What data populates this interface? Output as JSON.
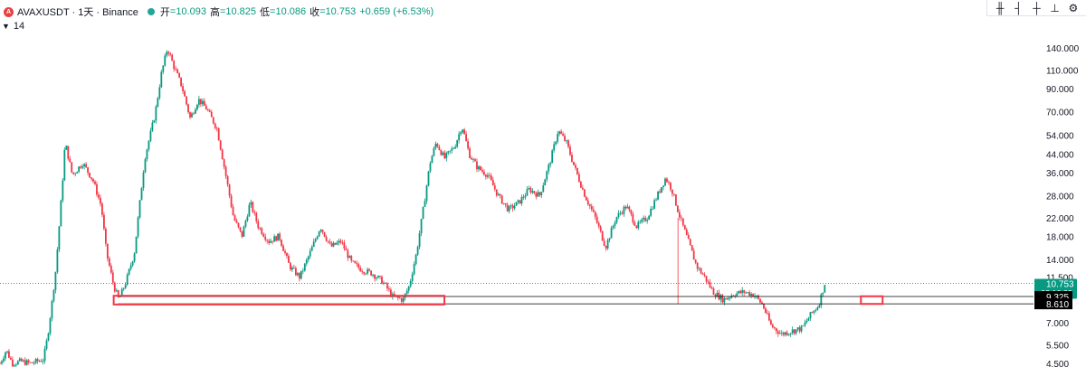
{
  "header": {
    "symbol": "AVAXUSDT · 1天 · Binance",
    "logo_letter": "A",
    "ohlc": [
      {
        "label": "开",
        "value": "=10.093"
      },
      {
        "label": "高",
        "value": "=10.825"
      },
      {
        "label": "低",
        "value": "=10.086"
      },
      {
        "label": "收",
        "value": "=10.753"
      }
    ],
    "change": "+0.659 (+6.53%)"
  },
  "indicator": {
    "value": "14"
  },
  "toolbar": {
    "icons": [
      "candles-icon",
      "bar-style-icon",
      "hl-bars-icon",
      "line-icon",
      "settings-icon"
    ]
  },
  "colors": {
    "up": "#089981",
    "down": "#f23645",
    "box": "#f23645",
    "price_tag": "#089981",
    "level_tag": "#000000"
  },
  "chart_data": {
    "type": "candlestick",
    "scale": "log",
    "y_ticks": [
      "140.000",
      "110.000",
      "90.000",
      "70.000",
      "54.000",
      "44.000",
      "36.000",
      "28.000",
      "22.000",
      "18.000",
      "14.000",
      "11.500",
      "9.325",
      "8.610",
      "7.000",
      "5.500",
      "4.500"
    ],
    "ylim": [
      4.4,
      170
    ],
    "last_price": {
      "value": "10.753",
      "countdown": "23:16:29"
    },
    "levels": [
      {
        "value": 9.325,
        "label": "9.325"
      },
      {
        "value": 8.61,
        "label": "8.610"
      }
    ],
    "price_path": [
      [
        0,
        4.5
      ],
      [
        0.6,
        5.2
      ],
      [
        1.2,
        4.5
      ],
      [
        2.0,
        4.6
      ],
      [
        3.0,
        4.5
      ],
      [
        4.2,
        4.7
      ],
      [
        4.6,
        6.0
      ],
      [
        5.0,
        8.5
      ],
      [
        5.4,
        12.5
      ],
      [
        6.0,
        30
      ],
      [
        6.3,
        50
      ],
      [
        7.0,
        35
      ],
      [
        8.0,
        40
      ],
      [
        9.0,
        33
      ],
      [
        9.8,
        25
      ],
      [
        10.3,
        15
      ],
      [
        11.0,
        10.5
      ],
      [
        11.5,
        9.0
      ],
      [
        12.2,
        11
      ],
      [
        13.0,
        15
      ],
      [
        14.0,
        42
      ],
      [
        15.0,
        68
      ],
      [
        15.6,
        105
      ],
      [
        16.2,
        140
      ],
      [
        16.8,
        115
      ],
      [
        17.6,
        92
      ],
      [
        18.4,
        65
      ],
      [
        19.2,
        80
      ],
      [
        20.0,
        72
      ],
      [
        21.0,
        58
      ],
      [
        21.8,
        36
      ],
      [
        22.6,
        22
      ],
      [
        23.4,
        18
      ],
      [
        24.2,
        26
      ],
      [
        25.0,
        20
      ],
      [
        26.0,
        17
      ],
      [
        27.0,
        18
      ],
      [
        28.0,
        13
      ],
      [
        29.0,
        11.5
      ],
      [
        30.0,
        15
      ],
      [
        31.0,
        20
      ],
      [
        32.0,
        16
      ],
      [
        33.0,
        17
      ],
      [
        34.0,
        13.5
      ],
      [
        35.0,
        12.5
      ],
      [
        36.0,
        12
      ],
      [
        37.0,
        11
      ],
      [
        38.0,
        9.3
      ],
      [
        39.0,
        9.0
      ],
      [
        39.6,
        10.5
      ],
      [
        40.3,
        15
      ],
      [
        41.0,
        25
      ],
      [
        41.6,
        40
      ],
      [
        42.2,
        50
      ],
      [
        43.0,
        42
      ],
      [
        44.0,
        48
      ],
      [
        44.7,
        60
      ],
      [
        45.4,
        44
      ],
      [
        46.2,
        38
      ],
      [
        47.2,
        35
      ],
      [
        48.2,
        28
      ],
      [
        49.2,
        24
      ],
      [
        50.2,
        26
      ],
      [
        51.2,
        30
      ],
      [
        52.2,
        28
      ],
      [
        53.2,
        40
      ],
      [
        54.0,
        57
      ],
      [
        54.8,
        50
      ],
      [
        55.6,
        38
      ],
      [
        56.6,
        28
      ],
      [
        57.6,
        22
      ],
      [
        58.6,
        16
      ],
      [
        59.6,
        22
      ],
      [
        60.6,
        25
      ],
      [
        61.6,
        20
      ],
      [
        62.6,
        22
      ],
      [
        63.6,
        28
      ],
      [
        64.4,
        34
      ],
      [
        65.0,
        30
      ],
      [
        65.8,
        22
      ],
      [
        66.6,
        17
      ],
      [
        67.4,
        13
      ],
      [
        68.2,
        11.5
      ],
      [
        69.0,
        9.8
      ],
      [
        70.0,
        9.0
      ],
      [
        71.0,
        9.6
      ],
      [
        72.0,
        9.8
      ],
      [
        73.0,
        9.5
      ],
      [
        73.8,
        8.5
      ],
      [
        74.6,
        6.8
      ],
      [
        75.6,
        6.2
      ],
      [
        76.6,
        6.4
      ],
      [
        77.6,
        6.6
      ],
      [
        78.4,
        7.6
      ],
      [
        79.2,
        8.5
      ],
      [
        79.8,
        10.75
      ]
    ],
    "boxes": [
      {
        "x": [
          11.0,
          43.0
        ],
        "y": [
          8.55,
          9.4
        ]
      },
      {
        "x": [
          83.3,
          85.4
        ],
        "y": [
          8.6,
          9.35
        ]
      }
    ]
  }
}
